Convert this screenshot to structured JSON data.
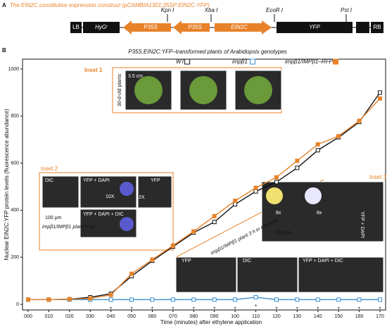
{
  "panel_a": {
    "label": "A",
    "title": "The EIN2C constitutive expression construct (pCAMBIA1301:35SP:EIN2C-YFP)",
    "elements": [
      "LB",
      "HyGʳ",
      "P35S",
      "P35S",
      "EIN2C",
      "YFP",
      "RB"
    ],
    "sites": [
      "Kpn I",
      "Xba I",
      "EcoR I",
      "Pst I"
    ]
  },
  "panel_b_label": "B",
  "chart_data": {
    "type": "line",
    "title": "P35S:EIN2C:YFP–transformed plants of Arabidopsis genotypes",
    "xlabel": "Time (minutes) after ethylene application",
    "ylabel": "Nuclear EIN2C:YFP protein levels (fluorescence abundance)",
    "categories": [
      "000",
      "010",
      "020",
      "030",
      "040",
      "050",
      "060",
      "070",
      "080",
      "090",
      "100",
      "110",
      "120",
      "130",
      "140",
      "150",
      "160",
      "170"
    ],
    "series": [
      {
        "name": "WT",
        "color": "#111111",
        "values": [
          20,
          20,
          22,
          30,
          45,
          120,
          185,
          245,
          305,
          350,
          425,
          480,
          520,
          580,
          655,
          710,
          775,
          900
        ]
      },
      {
        "name": "impβ1",
        "color": "#3a8fd0",
        "values": [
          20,
          20,
          20,
          20,
          20,
          20,
          20,
          20,
          20,
          20,
          20,
          30,
          20,
          20,
          20,
          20,
          20,
          20
        ]
      },
      {
        "name": "impβ1/IMPβ1–RFP",
        "color": "#e8822a",
        "values": [
          20,
          20,
          22,
          25,
          40,
          130,
          190,
          250,
          310,
          375,
          440,
          495,
          540,
          610,
          680,
          715,
          780,
          875
        ]
      }
    ],
    "significance": [
      null,
      null,
      null,
      null,
      "*",
      "*",
      "*",
      "*",
      "*",
      "*",
      "*",
      "*",
      "*",
      "*",
      "*",
      "*",
      "*",
      "*"
    ],
    "ylim": [
      0,
      1000
    ],
    "yticks": [
      0,
      200,
      400,
      600,
      800,
      1000
    ],
    "insets": [
      {
        "title": "Inset 1",
        "labels": [
          "3.5 cm",
          "30-d-old plants"
        ]
      },
      {
        "title": "Inset 2",
        "labels": [
          "DIC",
          "YFP + DAPI",
          "YFP",
          "10X",
          "2X",
          "100 μm",
          "YFP + DAPI + DIC",
          "impβ1/IMPβ1 plant in air"
        ]
      },
      {
        "title": "Inset 3",
        "labels": [
          "impβ1/IMPβ1 plant 3 h in ethylene",
          "8x",
          "8x",
          "YFP + DAPI",
          "100 μm",
          "YFP",
          "DIC",
          "YFP + DAPI + DIC"
        ]
      }
    ]
  }
}
